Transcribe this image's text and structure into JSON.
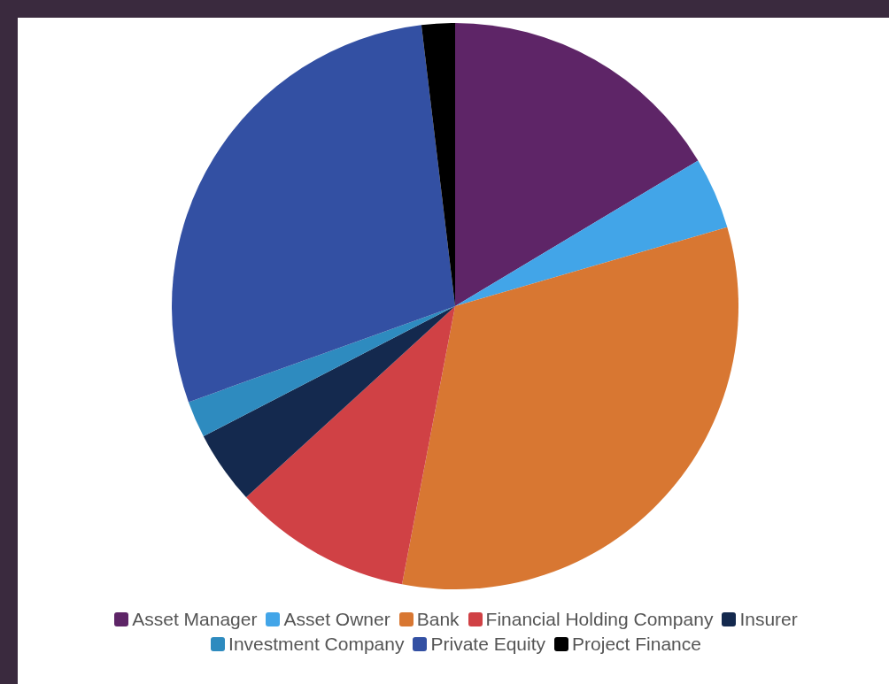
{
  "chart_data": {
    "type": "pie",
    "categories": [
      "Asset Manager",
      "Asset Owner",
      "Bank",
      "Financial Holding Company",
      "Insurer",
      "Investment Company",
      "Private Equity",
      "Project Finance"
    ],
    "values": [
      16.4,
      4.1,
      32.5,
      10.2,
      4.2,
      2.1,
      28.6,
      1.9
    ],
    "colors": [
      "#5e2567",
      "#42a5e8",
      "#d87732",
      "#d04145",
      "#14294e",
      "#2e8bbf",
      "#3350a3",
      "#000000"
    ],
    "legend": "bottom"
  }
}
